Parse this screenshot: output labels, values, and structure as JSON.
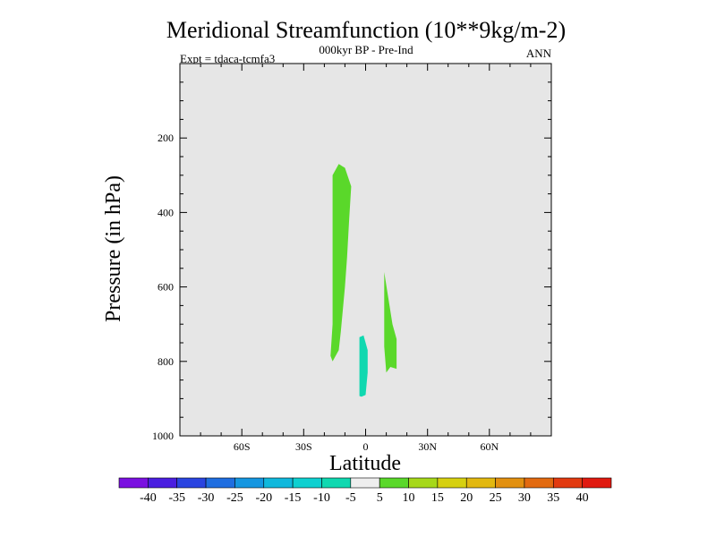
{
  "chart_data": {
    "type": "contour",
    "title": "Meridional Streamfunction (10**9kg/m-2)",
    "subtitle": "000kyr BP - Pre-Ind",
    "left_label": "Expt = tdaca-tcmfa3",
    "right_label": "ANN",
    "xlabel": "Latitude",
    "ylabel": "Pressure (in hPa)",
    "xlim": [
      -90,
      90
    ],
    "ylim": [
      1000,
      0
    ],
    "y_axis_inverted": true,
    "x_ticks": [
      {
        "value": -60,
        "label": "60S"
      },
      {
        "value": -30,
        "label": "30S"
      },
      {
        "value": 0,
        "label": "0"
      },
      {
        "value": 30,
        "label": "30N"
      },
      {
        "value": 60,
        "label": "60N"
      }
    ],
    "y_ticks": [
      {
        "value": 200,
        "label": "200"
      },
      {
        "value": 400,
        "label": "400"
      },
      {
        "value": 600,
        "label": "600"
      },
      {
        "value": 800,
        "label": "800"
      },
      {
        "value": 1000,
        "label": "1000"
      }
    ],
    "background_color": "#e6e6e6",
    "colorbar": {
      "labels": [
        "-40",
        "-35",
        "-30",
        "-25",
        "-20",
        "-15",
        "-10",
        "-5",
        "5",
        "10",
        "15",
        "20",
        "25",
        "30",
        "35",
        "40"
      ],
      "colors": [
        "#7a10e0",
        "#4a1ee0",
        "#2a44e0",
        "#1f6ee0",
        "#1596e0",
        "#10b8dc",
        "#0ed0d0",
        "#10d8b0",
        "#eeeeee",
        "#5ad82a",
        "#a6d81a",
        "#d6d010",
        "#e2b810",
        "#e29010",
        "#e26a10",
        "#e23a10",
        "#e01a10"
      ]
    },
    "regions": [
      {
        "name": "positive-5-10-region-sh-upper",
        "range": "5 to 10",
        "color": "#5ad82a",
        "points": [
          [
            -13,
            270
          ],
          [
            -10,
            280
          ],
          [
            -7,
            330
          ],
          [
            -8,
            420
          ],
          [
            -9,
            520
          ],
          [
            -10,
            600
          ],
          [
            -11,
            660
          ],
          [
            -12,
            720
          ],
          [
            -13,
            770
          ],
          [
            -15,
            790
          ],
          [
            -16,
            800
          ],
          [
            -17,
            785
          ],
          [
            -16,
            700
          ],
          [
            -16,
            600
          ],
          [
            -16,
            500
          ],
          [
            -16,
            400
          ],
          [
            -16,
            300
          ]
        ]
      },
      {
        "name": "positive-5-10-region-nh",
        "range": "5 to 10",
        "color": "#5ad82a",
        "points": [
          [
            9,
            560
          ],
          [
            11,
            630
          ],
          [
            13,
            700
          ],
          [
            15,
            740
          ],
          [
            15,
            790
          ],
          [
            15,
            820
          ],
          [
            12,
            815
          ],
          [
            10,
            830
          ],
          [
            9,
            760
          ],
          [
            9,
            680
          ]
        ]
      },
      {
        "name": "negative-5-10-region-low",
        "range": "-10 to -5",
        "color": "#10d8b0",
        "points": [
          [
            -3,
            735
          ],
          [
            -1,
            730
          ],
          [
            1,
            770
          ],
          [
            1,
            830
          ],
          [
            0,
            890
          ],
          [
            -2,
            895
          ],
          [
            -3,
            893
          ],
          [
            -3,
            820
          ],
          [
            -3,
            780
          ]
        ]
      }
    ]
  }
}
